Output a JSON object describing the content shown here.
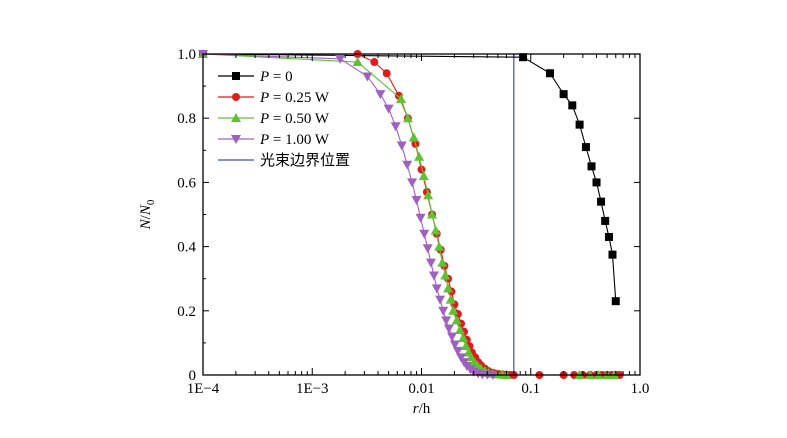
{
  "chart_data": {
    "type": "scatter",
    "xscale": "log",
    "xlim": [
      0.0001,
      1.0
    ],
    "ylim": [
      0,
      1.0
    ],
    "xlabel": "r/h",
    "ylabel": "N/N0",
    "xlabel_parts": {
      "italic": "r",
      "rest": "/h"
    },
    "ylabel_parts": {
      "n": "N",
      "slash": "/",
      "n2": "N",
      "sub": "0"
    },
    "xticks": [
      {
        "value": 0.0001,
        "label": "1E−4"
      },
      {
        "value": 0.001,
        "label": "1E−3"
      },
      {
        "value": 0.01,
        "label": "0.01"
      },
      {
        "value": 0.1,
        "label": "0.1"
      },
      {
        "value": 1.0,
        "label": "1.0"
      }
    ],
    "yticks": [
      {
        "value": 0,
        "label": "0"
      },
      {
        "value": 0.2,
        "label": "0.2"
      },
      {
        "value": 0.4,
        "label": "0.4"
      },
      {
        "value": 0.6,
        "label": "0.6"
      },
      {
        "value": 0.8,
        "label": "0.8"
      },
      {
        "value": 1.0,
        "label": "1.0"
      }
    ],
    "grid": false,
    "legend_position": "top-left",
    "series": [
      {
        "name": "P = 0",
        "name_italic": "P",
        "name_rest": " = 0",
        "color": "#000000",
        "marker": "square",
        "x": [
          0.0001,
          0.085,
          0.15,
          0.2,
          0.24,
          0.28,
          0.32,
          0.36,
          0.4,
          0.44,
          0.48,
          0.52,
          0.56,
          0.6
        ],
        "y": [
          1.0,
          0.99,
          0.94,
          0.875,
          0.84,
          0.78,
          0.71,
          0.65,
          0.6,
          0.54,
          0.48,
          0.43,
          0.375,
          0.23
        ]
      },
      {
        "name": "P = 0.25 W",
        "name_italic": "P",
        "name_rest": " = 0.25 W",
        "color": "#e01b1b",
        "marker": "circle",
        "x": [
          0.0001,
          0.0026,
          0.0037,
          0.0048,
          0.0062,
          0.0075,
          0.0088,
          0.01,
          0.0112,
          0.0125,
          0.0138,
          0.015,
          0.0162,
          0.0175,
          0.0188,
          0.02,
          0.0215,
          0.023,
          0.0245,
          0.026,
          0.0275,
          0.029,
          0.031,
          0.033,
          0.035,
          0.038,
          0.041,
          0.045,
          0.05,
          0.055,
          0.06,
          0.065,
          0.07,
          0.12,
          0.2,
          0.25,
          0.3,
          0.35,
          0.4,
          0.45,
          0.5,
          0.55,
          0.6,
          0.65
        ],
        "y": [
          1.0,
          1.0,
          0.975,
          0.94,
          0.87,
          0.8,
          0.72,
          0.64,
          0.57,
          0.5,
          0.44,
          0.39,
          0.34,
          0.3,
          0.26,
          0.22,
          0.19,
          0.16,
          0.135,
          0.11,
          0.09,
          0.07,
          0.055,
          0.04,
          0.03,
          0.02,
          0.012,
          0.007,
          0.004,
          0.002,
          0.001,
          0.0,
          0.0,
          0.0,
          0.0,
          0.0,
          0.0,
          0.0,
          0.0,
          0.0,
          0.0,
          0.0,
          0.0,
          0.0
        ]
      },
      {
        "name": "P = 0.50 W",
        "name_italic": "P",
        "name_rest": " = 0.50 W",
        "color": "#5ec234",
        "marker": "triangle-up",
        "x": [
          0.0001,
          0.0026,
          0.0065,
          0.0075,
          0.0085,
          0.0095,
          0.0105,
          0.0115,
          0.0125,
          0.0135,
          0.0145,
          0.0155,
          0.0165,
          0.0175,
          0.0185,
          0.0195,
          0.021,
          0.0225,
          0.024,
          0.0255,
          0.027,
          0.0285,
          0.0305,
          0.0325,
          0.035,
          0.038,
          0.041,
          0.045,
          0.05,
          0.055,
          0.06,
          0.28,
          0.35,
          0.42,
          0.5,
          0.58
        ],
        "y": [
          1.0,
          0.975,
          0.86,
          0.8,
          0.74,
          0.68,
          0.62,
          0.56,
          0.5,
          0.45,
          0.4,
          0.35,
          0.31,
          0.27,
          0.235,
          0.2,
          0.17,
          0.14,
          0.115,
          0.09,
          0.07,
          0.055,
          0.04,
          0.03,
          0.02,
          0.012,
          0.007,
          0.004,
          0.002,
          0.001,
          0.0,
          0.0,
          0.0,
          0.0,
          0.0,
          0.0
        ]
      },
      {
        "name": "P = 1.00 W",
        "name_italic": "P",
        "name_rest": " = 1.00 W",
        "color": "#a060c0",
        "marker": "triangle-down",
        "x": [
          0.0001,
          0.0018,
          0.0032,
          0.0042,
          0.005,
          0.0058,
          0.0066,
          0.0074,
          0.0082,
          0.009,
          0.0098,
          0.0106,
          0.0114,
          0.0122,
          0.013,
          0.0138,
          0.0148,
          0.0158,
          0.0168,
          0.0178,
          0.019,
          0.0202,
          0.0215,
          0.023,
          0.0245,
          0.026,
          0.028,
          0.03,
          0.033,
          0.036,
          0.04,
          0.045
        ],
        "y": [
          1.0,
          0.985,
          0.93,
          0.875,
          0.83,
          0.775,
          0.715,
          0.655,
          0.6,
          0.545,
          0.49,
          0.44,
          0.395,
          0.35,
          0.31,
          0.27,
          0.235,
          0.2,
          0.17,
          0.145,
          0.12,
          0.095,
          0.075,
          0.055,
          0.04,
          0.028,
          0.018,
          0.01,
          0.005,
          0.002,
          0.001,
          0.0
        ]
      },
      {
        "name": "光束边界位置",
        "color": "#3a4fa8",
        "marker": "vline",
        "x": [
          0.07
        ]
      }
    ]
  }
}
